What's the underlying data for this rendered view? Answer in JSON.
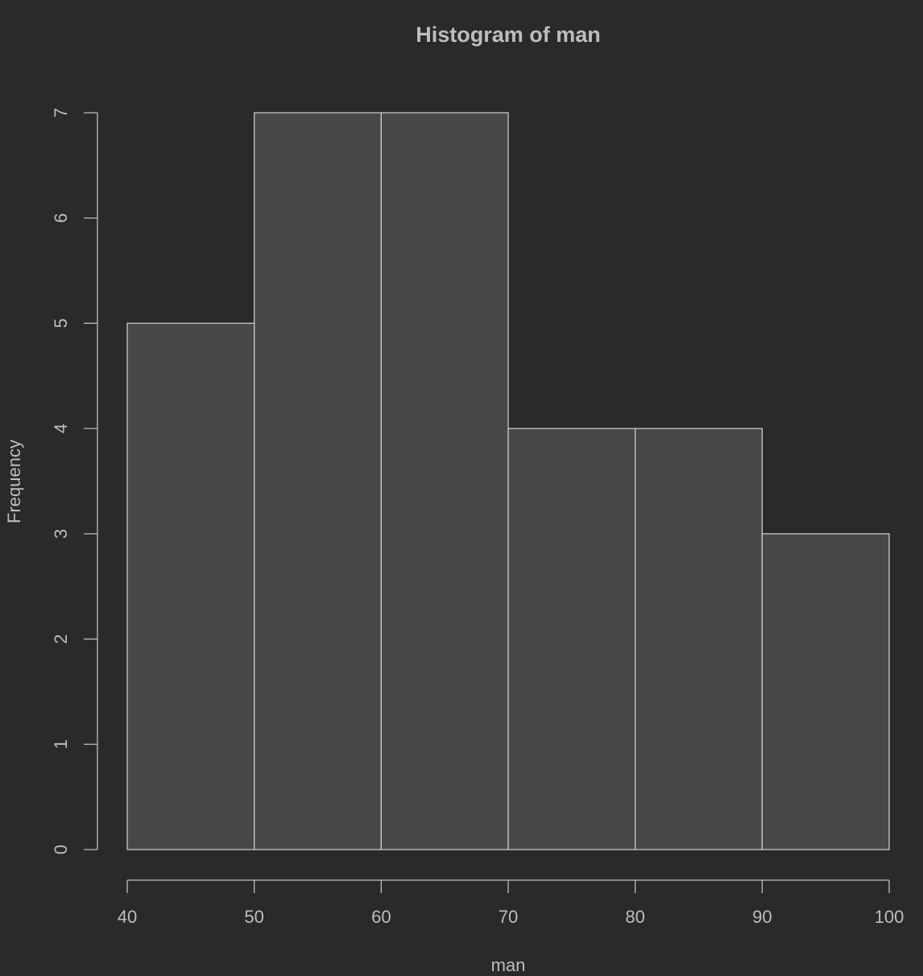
{
  "chart_data": {
    "type": "bar",
    "subtype": "histogram",
    "title": "Histogram of man",
    "xlabel": "man",
    "ylabel": "Frequency",
    "bins": [
      {
        "from": 40,
        "to": 50,
        "count": 5
      },
      {
        "from": 50,
        "to": 60,
        "count": 7
      },
      {
        "from": 60,
        "to": 70,
        "count": 7
      },
      {
        "from": 70,
        "to": 80,
        "count": 4
      },
      {
        "from": 80,
        "to": 90,
        "count": 4
      },
      {
        "from": 90,
        "to": 100,
        "count": 3
      }
    ],
    "xlim": [
      40,
      100
    ],
    "ylim": [
      0,
      7
    ],
    "x_ticks": [
      "40",
      "50",
      "60",
      "70",
      "80",
      "90",
      "100"
    ],
    "y_ticks": [
      "0",
      "1",
      "2",
      "3",
      "4",
      "5",
      "6",
      "7"
    ],
    "grid": false,
    "colors": {
      "background": "#2a2a2a",
      "bar_fill": "#484848",
      "bar_stroke": "#c8c8c8",
      "text": "#bdbdbd"
    }
  }
}
